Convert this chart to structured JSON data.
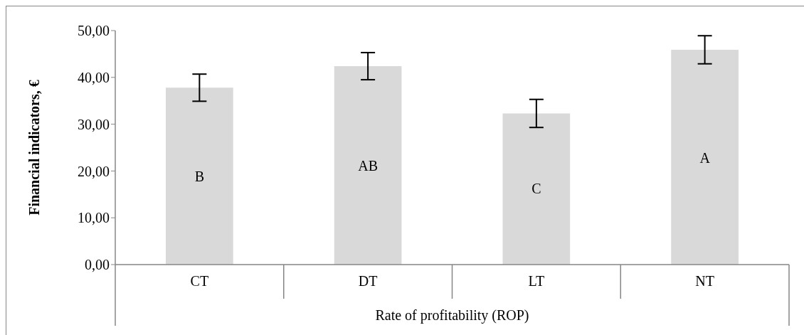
{
  "chart_data": {
    "type": "bar",
    "ylabel": "Financial indicators, €",
    "xlabel": "Rate of profitability (ROP)",
    "categories": [
      "CT",
      "DT",
      "LT",
      "NT"
    ],
    "values": [
      37.8,
      42.4,
      32.3,
      45.9
    ],
    "errors": [
      2.9,
      2.9,
      3.0,
      3.0
    ],
    "color": "#d9d9d9",
    "ylim": [
      0,
      50
    ],
    "yticks": [
      {
        "value": 0,
        "label": "0,00"
      },
      {
        "value": 10,
        "label": "10,00"
      },
      {
        "value": 20,
        "label": "20,00"
      },
      {
        "value": 30,
        "label": "30,00"
      },
      {
        "value": 40,
        "label": "40,00"
      },
      {
        "value": 50,
        "label": "50,00"
      }
    ],
    "grid": false,
    "annotations": [
      "B",
      "AB",
      "C",
      "A"
    ]
  }
}
